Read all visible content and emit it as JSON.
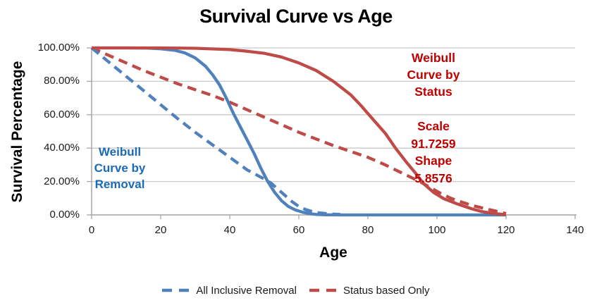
{
  "page": {
    "title": "Survival Curve vs Age"
  },
  "colors": {
    "background": "#ffffff",
    "gridline": "#c9c9c9",
    "axis": "#a6a6a6",
    "title_text": "#000000",
    "tick_text": "#1a1a1a",
    "blue_series": "#4f81bd",
    "red_series": "#be4b48",
    "blue_annotation": "#1b6ab8",
    "red_annotation": "#c00000"
  },
  "chart_data": {
    "type": "line",
    "title": "Survival Curve vs Age",
    "xlabel": "Age",
    "ylabel": "Survival Percentage",
    "xlim": [
      0,
      140
    ],
    "ylim": [
      0,
      100
    ],
    "grid": "horizontal-gridlines-only",
    "x_ticks": [
      {
        "label": "0",
        "value": 0
      },
      {
        "label": "20",
        "value": 20
      },
      {
        "label": "40",
        "value": 40
      },
      {
        "label": "60",
        "value": 60
      },
      {
        "label": "80",
        "value": 80
      },
      {
        "label": "100",
        "value": 100
      },
      {
        "label": "120",
        "value": 120
      },
      {
        "label": "140",
        "value": 140
      }
    ],
    "y_ticks": [
      {
        "label": "100.00%",
        "value": 100
      },
      {
        "label": "80.00%",
        "value": 80
      },
      {
        "label": "60.00%",
        "value": 60
      },
      {
        "label": "40.00%",
        "value": 40
      },
      {
        "label": "20.00%",
        "value": 20
      },
      {
        "label": "0.00%",
        "value": 0
      }
    ],
    "series": [
      {
        "name": "Status based Only",
        "role": "empirical status-based survival",
        "line_style": "dashed",
        "color": "#be4b48",
        "points": [
          [
            0,
            100
          ],
          [
            5,
            95.5
          ],
          [
            10,
            91
          ],
          [
            15,
            86.5
          ],
          [
            20,
            82.5
          ],
          [
            25,
            78.5
          ],
          [
            30,
            75
          ],
          [
            35,
            71.5
          ],
          [
            40,
            67.5
          ],
          [
            45,
            63
          ],
          [
            50,
            58.5
          ],
          [
            55,
            54
          ],
          [
            60,
            49.5
          ],
          [
            65,
            45.5
          ],
          [
            70,
            41.5
          ],
          [
            75,
            38
          ],
          [
            80,
            34.5
          ],
          [
            85,
            30
          ],
          [
            90,
            25
          ],
          [
            95,
            20
          ],
          [
            98,
            16.5
          ],
          [
            101,
            13
          ],
          [
            104,
            10
          ],
          [
            107,
            7.8
          ],
          [
            110,
            5.8
          ],
          [
            113,
            4.2
          ],
          [
            116,
            2.8
          ],
          [
            118,
            1.8
          ],
          [
            120,
            0.8
          ]
        ]
      },
      {
        "name": "All Inclusive Removal",
        "role": "empirical all-inclusive removal survival",
        "line_style": "dashed",
        "color": "#4f81bd",
        "points": [
          [
            0,
            100
          ],
          [
            5,
            91.5
          ],
          [
            10,
            83
          ],
          [
            15,
            74.5
          ],
          [
            20,
            66
          ],
          [
            25,
            57.5
          ],
          [
            30,
            49.5
          ],
          [
            35,
            42
          ],
          [
            40,
            34.5
          ],
          [
            45,
            27
          ],
          [
            50,
            21.5
          ],
          [
            52,
            19
          ],
          [
            55,
            13.5
          ],
          [
            58,
            8
          ],
          [
            60,
            5
          ],
          [
            62,
            3.2
          ],
          [
            64,
            2
          ],
          [
            66,
            1.2
          ],
          [
            69,
            0.6
          ],
          [
            72,
            0.3
          ]
        ]
      },
      {
        "name": "Weibull Curve by Removal",
        "role": "fitted Weibull survival curve (removal)",
        "line_style": "solid",
        "color": "#4f81bd",
        "points": [
          [
            0,
            100
          ],
          [
            10,
            100
          ],
          [
            16,
            99.9
          ],
          [
            20,
            99.5
          ],
          [
            24,
            98.6
          ],
          [
            27,
            97
          ],
          [
            30,
            94
          ],
          [
            33,
            89
          ],
          [
            35,
            84
          ],
          [
            37,
            78
          ],
          [
            39,
            70
          ],
          [
            41,
            61
          ],
          [
            43,
            53
          ],
          [
            45,
            45
          ],
          [
            47,
            37
          ],
          [
            49,
            28
          ],
          [
            51,
            20
          ],
          [
            53,
            13.5
          ],
          [
            55,
            8.5
          ],
          [
            57,
            5
          ],
          [
            59,
            3
          ],
          [
            61,
            1.7
          ],
          [
            63,
            0.8
          ],
          [
            65,
            0.3
          ],
          [
            68,
            0.1
          ],
          [
            72,
            0
          ],
          [
            120,
            0
          ]
        ]
      },
      {
        "name": "Weibull Curve by Status",
        "role": "fitted Weibull survival curve (status), scale 91.7259 shape 5.8576",
        "line_style": "solid",
        "color": "#be4b48",
        "points": [
          [
            0,
            100
          ],
          [
            20,
            100
          ],
          [
            30,
            99.8
          ],
          [
            40,
            99
          ],
          [
            45,
            98
          ],
          [
            50,
            96.8
          ],
          [
            55,
            94.5
          ],
          [
            60,
            91
          ],
          [
            65,
            86.5
          ],
          [
            70,
            80
          ],
          [
            75,
            72
          ],
          [
            78,
            65.5
          ],
          [
            82,
            56
          ],
          [
            85,
            49
          ],
          [
            88,
            40
          ],
          [
            91,
            32
          ],
          [
            94,
            24.5
          ],
          [
            96,
            19
          ],
          [
            99,
            13.5
          ],
          [
            102,
            9.7
          ],
          [
            106,
            6.5
          ],
          [
            110,
            3.7
          ],
          [
            113,
            2
          ],
          [
            116,
            1
          ],
          [
            119,
            0.3
          ],
          [
            120,
            0.2
          ]
        ]
      }
    ],
    "annotations": [
      {
        "id": "weibull-removal",
        "color": "#1b6ab8",
        "lines": [
          "Weibull",
          "Curve by",
          "Removal"
        ]
      },
      {
        "id": "weibull-status",
        "color": "#c00000",
        "lines": [
          "Weibull",
          "Curve by",
          "Status"
        ]
      },
      {
        "id": "weibull-params",
        "color": "#c00000",
        "lines": [
          "Scale",
          "91.7259",
          "Shape",
          "5.8576"
        ]
      }
    ],
    "legend": {
      "position": "bottom-center",
      "items": [
        {
          "label": "All Inclusive Removal",
          "color": "#4f81bd",
          "line_style": "dashed"
        },
        {
          "label": "Status based Only",
          "color": "#be4b48",
          "line_style": "dashed"
        }
      ]
    }
  }
}
